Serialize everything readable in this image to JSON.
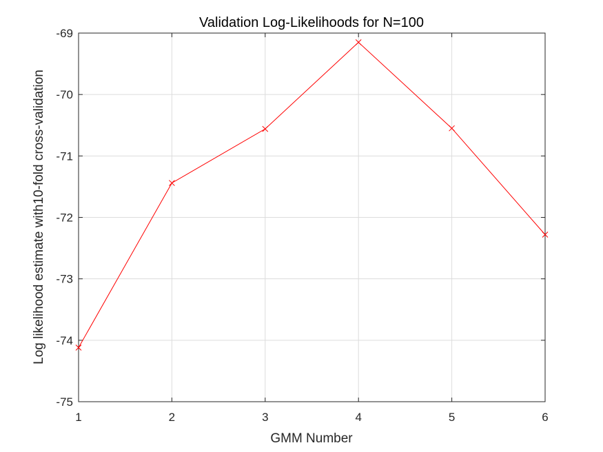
{
  "chart_data": {
    "type": "line",
    "title": "Validation Log-Likelihoods for N=100",
    "xlabel": "GMM Number",
    "ylabel": "Log likelihood estimate with10-fold cross-validation",
    "x": [
      1,
      2,
      3,
      4,
      5,
      6
    ],
    "series": [
      {
        "values": [
          -74.12,
          -71.44,
          -70.56,
          -69.15,
          -70.55,
          -72.28
        ],
        "color": "#ff0000",
        "marker": "x"
      }
    ],
    "xlim": [
      1,
      6
    ],
    "ylim": [
      -75,
      -69
    ],
    "xticks": [
      "1",
      "2",
      "3",
      "4",
      "5",
      "6"
    ],
    "yticks": [
      "-75",
      "-74",
      "-73",
      "-72",
      "-71",
      "-70",
      "-69"
    ],
    "grid": true
  }
}
